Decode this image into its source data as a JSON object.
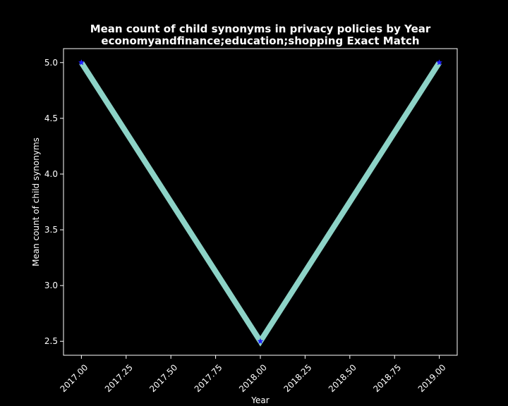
{
  "chart_data": {
    "type": "line",
    "title_lines": [
      "Mean count of child synonyms in privacy policies by Year",
      "economyandfinance;education;shopping Exact Match"
    ],
    "xlabel": "Year",
    "ylabel": "Mean count of child synonyms",
    "x": [
      2017,
      2018,
      2019
    ],
    "series": [
      {
        "values": [
          5.0,
          2.5,
          5.0
        ]
      }
    ],
    "xlim": [
      2016.9,
      2019.1
    ],
    "ylim": [
      2.375,
      5.125
    ],
    "x_ticks": [
      2017.0,
      2017.25,
      2017.5,
      2017.75,
      2018.0,
      2018.25,
      2018.5,
      2018.75,
      2019.0
    ],
    "x_tick_labels": [
      "2017.00",
      "2017.25",
      "2017.50",
      "2017.75",
      "2018.00",
      "2018.25",
      "2018.50",
      "2018.75",
      "2019.00"
    ],
    "y_ticks": [
      2.5,
      3.0,
      3.5,
      4.0,
      4.5,
      5.0
    ],
    "y_tick_labels": [
      "2.5",
      "3.0",
      "3.5",
      "4.0",
      "4.5",
      "5.0"
    ],
    "grid": false,
    "legend": "none",
    "colors": {
      "background": "#000000",
      "line": "#8dd3c7",
      "marker": "#1f1fff",
      "axes": "#ffffff",
      "text": "#ffffff"
    },
    "marker": "star"
  }
}
